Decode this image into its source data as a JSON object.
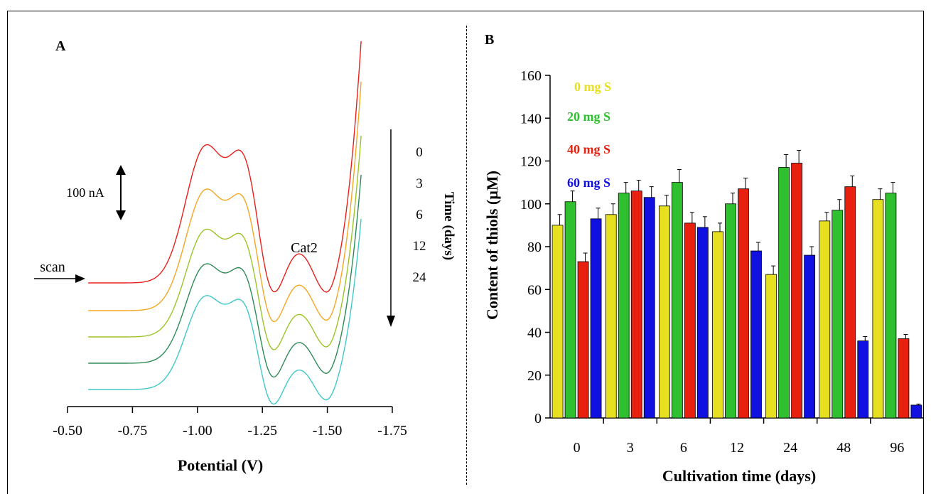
{
  "chart_data": [
    {
      "panel": "A",
      "type": "line",
      "xlabel": "Potential (V)",
      "xticks": [
        "-0.50",
        "-0.75",
        "-1.00",
        "-1.25",
        "-1.50",
        "-1.75"
      ],
      "xlim": [
        -0.5,
        -1.75
      ],
      "scale_bar": "100 nA",
      "peak_label": "Cat2",
      "scan_label": "scan",
      "time_axis_label": "Time (days)",
      "time_values": [
        "0",
        "3",
        "6",
        "12",
        "24"
      ],
      "colors": [
        "#e8201c",
        "#f5a623",
        "#9bc425",
        "#2e8b57",
        "#40c8c8"
      ]
    },
    {
      "panel": "B",
      "type": "bar",
      "xlabel": "Cultivation time (days)",
      "ylabel": "Content of thiols (µM)",
      "ylim": [
        0,
        160
      ],
      "yticks": [
        0,
        20,
        40,
        60,
        80,
        100,
        120,
        140,
        160
      ],
      "categories": [
        "0",
        "3",
        "6",
        "12",
        "24",
        "48",
        "96"
      ],
      "series": [
        {
          "name": "0 mg S",
          "color": "#e6e020",
          "values": [
            90,
            95,
            99,
            87,
            67,
            92,
            102
          ],
          "errors": [
            5,
            5,
            5,
            4,
            4,
            4,
            5
          ]
        },
        {
          "name": "20 mg S",
          "color": "#2ec02e",
          "values": [
            101,
            105,
            110,
            100,
            117,
            97,
            105
          ],
          "errors": [
            5,
            5,
            6,
            5,
            6,
            5,
            5
          ]
        },
        {
          "name": "40 mg S",
          "color": "#e82010",
          "values": [
            73,
            106,
            91,
            107,
            119,
            108,
            37
          ],
          "errors": [
            4,
            5,
            5,
            5,
            6,
            5,
            2
          ]
        },
        {
          "name": "60 mg S",
          "color": "#1010e0",
          "values": [
            93,
            103,
            89,
            78,
            76,
            36,
            6
          ],
          "errors": [
            5,
            5,
            5,
            4,
            4,
            2,
            0.5
          ]
        }
      ]
    }
  ]
}
